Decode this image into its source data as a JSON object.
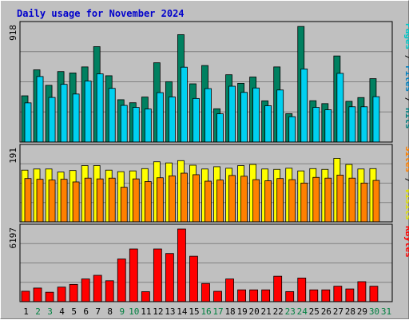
{
  "chart_data": {
    "type": "bar",
    "title": "Daily usage for November 2024",
    "categories": [
      "1",
      "2",
      "3",
      "4",
      "5",
      "6",
      "7",
      "8",
      "9",
      "10",
      "11",
      "12",
      "13",
      "14",
      "15",
      "16",
      "17",
      "18",
      "19",
      "20",
      "21",
      "22",
      "23",
      "24",
      "25",
      "26",
      "27",
      "28",
      "29",
      "30",
      "31"
    ],
    "weekend_days": [
      "2",
      "3",
      "9",
      "10",
      "16",
      "17",
      "23",
      "24",
      "30",
      "31"
    ],
    "panels": [
      {
        "id": "hits",
        "ymax_label": "918",
        "ylim": [
          0,
          918
        ],
        "legend": [
          {
            "text": "Pages",
            "color": "#00c8c8"
          },
          {
            "text": " / ",
            "color": "#000000"
          },
          {
            "text": "Files",
            "color": "#0080c0"
          },
          {
            "text": " / ",
            "color": "#000000"
          },
          {
            "text": "Hits",
            "color": "#008080"
          }
        ],
        "series": [
          {
            "name": "Hits",
            "color": "#008060",
            "values": [
              367,
              573,
              450,
              559,
              548,
              596,
              757,
              526,
              336,
              312,
              357,
              629,
              479,
              852,
              462,
              607,
              264,
              534,
              466,
              516,
              327,
              596,
              225,
              917,
              328,
              305,
              683,
              323,
              353,
              503,
              0
            ]
          },
          {
            "name": "Files",
            "color": "#00d0f0",
            "values": [
              311,
              520,
              354,
              458,
              381,
              484,
              541,
              426,
              291,
              275,
              262,
              392,
              358,
              594,
              346,
              424,
              224,
              443,
              394,
              429,
              288,
              413,
              201,
              580,
              275,
              256,
              545,
              280,
              280,
              360,
              0
            ]
          }
        ]
      },
      {
        "id": "visits",
        "ymax_label": "191",
        "ylim": [
          0,
          191
        ],
        "legend": [
          {
            "text": "Sites",
            "color": "#ff8000"
          },
          {
            "text": " / ",
            "color": "#000000"
          },
          {
            "text": "Visits",
            "color": "#e0e000"
          }
        ],
        "series": [
          {
            "name": "Visits",
            "color": "#ffff00",
            "values": [
              136,
              139,
              139,
              131,
              135,
              148,
              148,
              136,
              132,
              134,
              140,
              158,
              155,
              161,
              149,
              139,
              145,
              141,
              148,
              151,
              139,
              138,
              141,
              134,
              140,
              138,
              167,
              151,
              139,
              140,
              0
            ]
          },
          {
            "name": "Sites",
            "color": "#ff8000",
            "values": [
              114,
              112,
              110,
              112,
              105,
              115,
              113,
              115,
              91,
              113,
              106,
              116,
              121,
              128,
              124,
              107,
              110,
              122,
              120,
              111,
              108,
              114,
              111,
              102,
              117,
              115,
              123,
              115,
              102,
              109,
              0
            ]
          }
        ]
      },
      {
        "id": "kbytes",
        "ymax_label": "6197",
        "ylim": [
          0,
          6197
        ],
        "legend": [
          {
            "text": "KBytes",
            "color": "#ff0000"
          }
        ],
        "series": [
          {
            "name": "KBytes",
            "color": "#ff0000",
            "values": [
              889,
              1162,
              806,
              1240,
              1473,
              1937,
              2247,
              1783,
              3642,
              4494,
              850,
              4494,
              4106,
              6197,
              3874,
              1550,
              883,
              1936,
              1008,
              1006,
              1007,
              2170,
              859,
              2016,
              1007,
              1007,
              1318,
              1085,
              1705,
              1318,
              0
            ]
          }
        ]
      }
    ]
  }
}
